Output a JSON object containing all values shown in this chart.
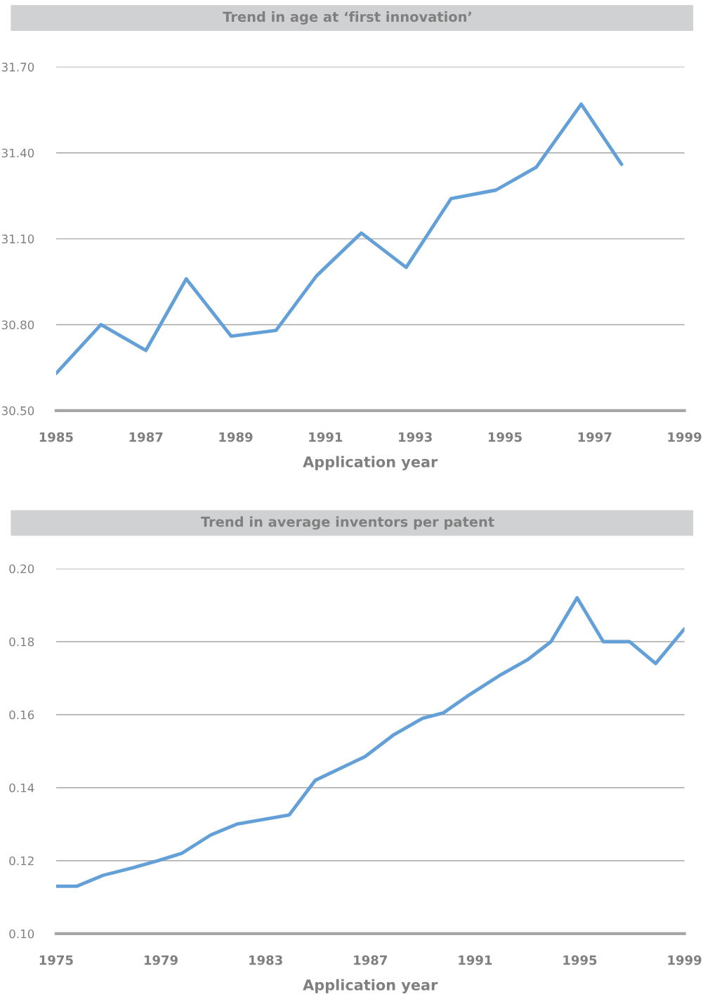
{
  "chart_data": [
    {
      "type": "line",
      "title": "Trend in age at ‘first innovation’",
      "xlabel": "Application year",
      "x": [
        1985,
        1986,
        1987,
        1987.9,
        1988.9,
        1989.9,
        1990.8,
        1991.8,
        1992.8,
        1993.8,
        1994.8,
        1995.7,
        1996.7,
        1997.6
      ],
      "series": [
        {
          "color": "#64a0d8",
          "values": [
            30.63,
            30.8,
            30.71,
            30.96,
            30.76,
            30.78,
            30.97,
            31.12,
            31.0,
            31.24,
            31.27,
            31.35,
            31.57,
            31.36
          ]
        }
      ],
      "xlim": [
        1985,
        1999
      ],
      "xticks": [
        1985,
        1987,
        1989,
        1991,
        1993,
        1995,
        1997,
        1999
      ],
      "ylim": [
        30.5,
        31.7
      ],
      "yticks": [
        {
          "value": 30.5,
          "label": "30.50"
        },
        {
          "value": 30.8,
          "label": "30.80"
        },
        {
          "value": 31.1,
          "label": "31.10"
        },
        {
          "value": 31.4,
          "label": "31.40"
        },
        {
          "value": 31.7,
          "label": "31.70"
        }
      ],
      "grid": "y",
      "marker": "none",
      "line_style": "solid"
    },
    {
      "type": "line",
      "title": "Trend in average inventors per patent",
      "xlabel": "Application year",
      "x": [
        1975,
        1975.8,
        1976.8,
        1977.9,
        1978.9,
        1979.8,
        1980.9,
        1981.9,
        1983.9,
        1984.9,
        1986.8,
        1987.9,
        1989.0,
        1989.8,
        1990.8,
        1992.0,
        1993.0,
        1993.9,
        1994.9,
        1995.9,
        1996.9,
        1997.9,
        1999
      ],
      "series": [
        {
          "color": "#64a0d8",
          "values": [
            0.113,
            0.113,
            0.116,
            0.118,
            0.12,
            0.122,
            0.127,
            0.13,
            0.1325,
            0.142,
            0.1485,
            0.1545,
            0.159,
            0.1605,
            0.1655,
            0.171,
            0.175,
            0.18,
            0.192,
            0.18,
            0.18,
            0.174,
            0.1835
          ]
        }
      ],
      "xlim": [
        1975,
        1999
      ],
      "xticks": [
        1975,
        1979,
        1983,
        1987,
        1991,
        1995,
        1999
      ],
      "ylim": [
        0.1,
        0.2
      ],
      "yticks": [
        {
          "value": 0.1,
          "label": "0.10"
        },
        {
          "value": 0.12,
          "label": "0.12"
        },
        {
          "value": 0.14,
          "label": "0.14"
        },
        {
          "value": 0.16,
          "label": "0.16"
        },
        {
          "value": 0.18,
          "label": "0.18"
        },
        {
          "value": 0.2,
          "label": "0.20"
        }
      ],
      "grid": "y",
      "marker": "none",
      "line_style": "solid"
    }
  ]
}
